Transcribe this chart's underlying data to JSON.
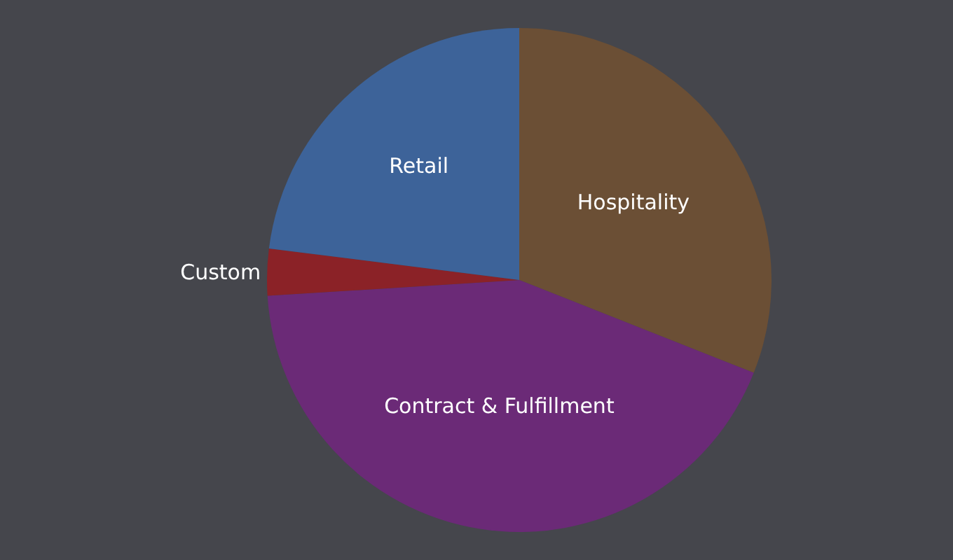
{
  "chart_data": {
    "type": "pie",
    "categories": [
      "Hospitality",
      "Contract & Fulfillment",
      "Custom",
      "Retail"
    ],
    "values": [
      31,
      43,
      3,
      23
    ],
    "colors": [
      "#6b4f35",
      "#6b2a77",
      "#8b2227",
      "#3d6399"
    ],
    "legend": false
  }
}
